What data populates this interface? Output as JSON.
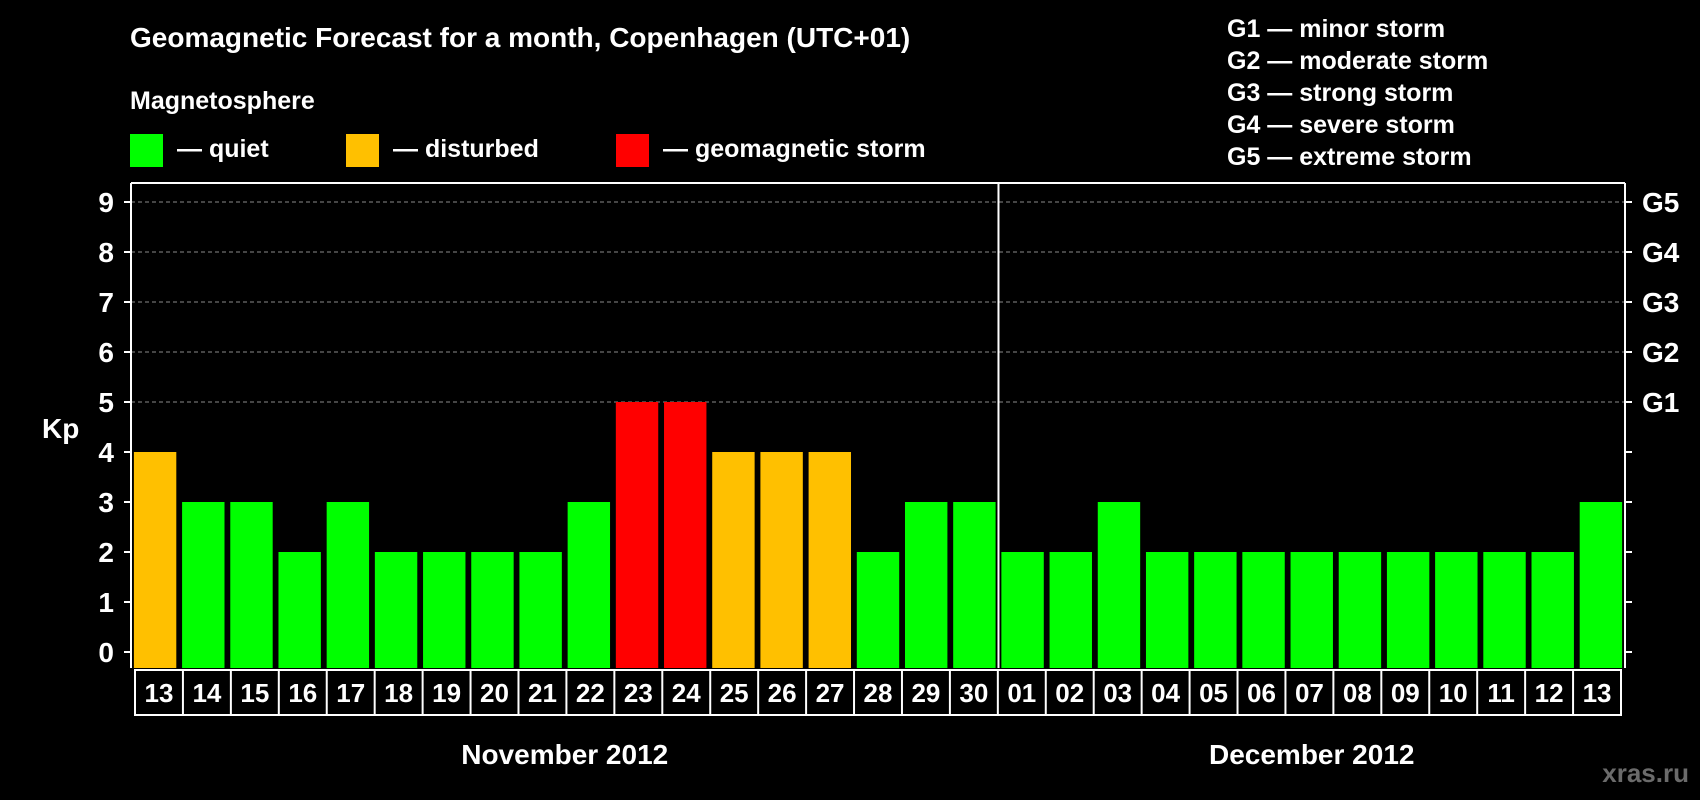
{
  "chart_data": {
    "type": "bar",
    "title": "Geomagnetic Forecast for a month, Copenhagen (UTC+01)",
    "legend": {
      "heading": "Magnetosphere",
      "items": [
        {
          "label": "— quiet",
          "color": "#00ff00"
        },
        {
          "label": "— disturbed",
          "color": "#ffc000"
        },
        {
          "label": "— geomagnetic storm",
          "color": "#ff0000"
        }
      ]
    },
    "storm_levels": [
      "G1 — minor storm",
      "G2 — moderate storm",
      "G3 — strong storm",
      "G4 — severe storm",
      "G5 — extreme storm"
    ],
    "ylabel": "Kp",
    "ylim": [
      0,
      9
    ],
    "yticks": [
      "0",
      "1",
      "2",
      "3",
      "4",
      "5",
      "6",
      "7",
      "8",
      "9"
    ],
    "right_axis": {
      "G1": 5,
      "G2": 6,
      "G3": 7,
      "G4": 8,
      "G5": 9
    },
    "categories": [
      "13",
      "14",
      "15",
      "16",
      "17",
      "18",
      "19",
      "20",
      "21",
      "22",
      "23",
      "24",
      "25",
      "26",
      "27",
      "28",
      "29",
      "30",
      "01",
      "02",
      "03",
      "04",
      "05",
      "06",
      "07",
      "08",
      "09",
      "10",
      "11",
      "12",
      "13"
    ],
    "values": [
      4,
      3,
      3,
      2,
      3,
      2,
      2,
      2,
      2,
      3,
      5,
      5,
      4,
      4,
      4,
      2,
      3,
      3,
      2,
      2,
      3,
      2,
      2,
      2,
      2,
      2,
      2,
      2,
      2,
      2,
      3
    ],
    "months": [
      {
        "label": "November 2012",
        "count": 18
      },
      {
        "label": "December 2012",
        "count": 13
      }
    ],
    "grid": true,
    "colors": {
      "quiet": "#00ff00",
      "disturbed": "#ffc000",
      "storm": "#ff0000",
      "background": "#000000",
      "axis": "#ffffff"
    }
  },
  "watermark": "xras.ru"
}
